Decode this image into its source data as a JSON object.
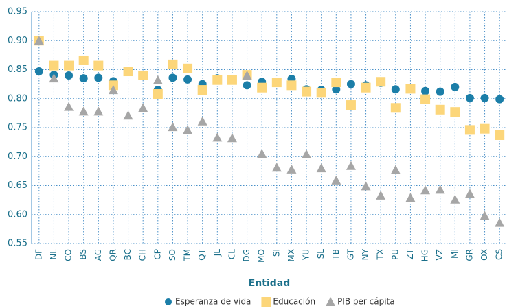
{
  "chart_data": {
    "type": "scatter",
    "x_label": "Entidad",
    "categories": [
      "DF",
      "NL",
      "CO",
      "BS",
      "AG",
      "QR",
      "BC",
      "CH",
      "CP",
      "SO",
      "TM",
      "QT",
      "JL",
      "CL",
      "DG",
      "MO",
      "SI",
      "MX",
      "YU",
      "SL",
      "TB",
      "GT",
      "NY",
      "TX",
      "PU",
      "ZT",
      "HG",
      "VZ",
      "MI",
      "GR",
      "OX",
      "CS"
    ],
    "series": [
      {
        "name": "Esperanza de vida",
        "color": "#1b7ea8",
        "marker": "circle",
        "values": [
          0.847,
          0.841,
          0.84,
          0.835,
          0.836,
          0.83,
          0.846,
          0.84,
          0.815,
          0.836,
          0.833,
          0.825,
          0.835,
          0.834,
          0.823,
          0.829,
          0.828,
          0.834,
          0.816,
          0.815,
          0.816,
          0.825,
          0.823,
          0.827,
          0.816,
          0.817,
          0.813,
          0.812,
          0.82,
          0.801,
          0.801,
          0.799
        ]
      },
      {
        "name": "Educación",
        "color": "#fcd67a",
        "marker": "square",
        "values": [
          0.9,
          0.857,
          0.857,
          0.866,
          0.857,
          0.823,
          0.847,
          0.84,
          0.808,
          0.859,
          0.852,
          0.815,
          0.832,
          0.832,
          0.841,
          0.819,
          0.828,
          0.823,
          0.812,
          0.81,
          0.828,
          0.789,
          0.819,
          0.829,
          0.784,
          0.817,
          0.799,
          0.781,
          0.777,
          0.746,
          0.748,
          0.737
        ]
      },
      {
        "name": "PIB per cápita",
        "color": "#a6a6a6",
        "marker": "triangle",
        "values": [
          0.9,
          0.835,
          0.786,
          0.778,
          0.778,
          0.815,
          0.771,
          0.784,
          0.832,
          0.751,
          0.746,
          0.761,
          0.733,
          0.732,
          0.84,
          0.705,
          0.681,
          0.678,
          0.704,
          0.68,
          0.659,
          0.684,
          0.649,
          0.633,
          0.677,
          0.629,
          0.642,
          0.643,
          0.626,
          0.636,
          0.598,
          0.586
        ]
      }
    ],
    "ylim": [
      0.55,
      0.95
    ],
    "yticks": [
      0.55,
      {
        "value": 0.6,
        "label": "0.60"
      },
      0.65,
      {
        "value": 0.7,
        "label": "0.70"
      },
      0.75,
      {
        "value": 0.8,
        "label": "0.80"
      },
      0.85,
      {
        "value": 0.9,
        "label": "0.90"
      },
      0.95
    ],
    "grid": true,
    "legend": "bottom"
  }
}
